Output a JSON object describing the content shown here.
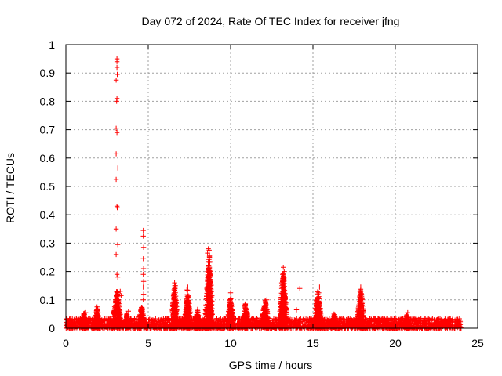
{
  "chart_data": {
    "type": "scatter",
    "title": "Day 072 of 2024, Rate Of TEC Index for receiver jfng",
    "xlabel": "GPS time / hours",
    "ylabel": "ROTI / TECUs",
    "xlim": [
      0,
      25
    ],
    "ylim": [
      0,
      1
    ],
    "x_ticks": [
      0,
      5,
      10,
      15,
      20,
      25
    ],
    "y_ticks": [
      0,
      0.1,
      0.2,
      0.3,
      0.4,
      0.5,
      0.6,
      0.7,
      0.8,
      0.9,
      1
    ],
    "x_tick_labels": [
      "0",
      "5",
      "10",
      "15",
      "20",
      "25"
    ],
    "y_tick_labels": [
      "0",
      "0.1",
      "0.2",
      "0.3",
      "0.4",
      "0.5",
      "0.6",
      "0.7",
      "0.8",
      "0.9",
      "1"
    ],
    "grid": true,
    "marker": "+",
    "color": "#ff0000",
    "baseline": {
      "x_start": 0,
      "x_end": 24,
      "y_min": 0.0,
      "y_max": 0.035
    },
    "clusters": [
      {
        "x_center": 1.1,
        "x_spread": 0.15,
        "peak": 0.06
      },
      {
        "x_center": 1.9,
        "x_spread": 0.2,
        "peak": 0.08
      },
      {
        "x_center": 3.1,
        "x_spread": 0.35,
        "peak": 0.14
      },
      {
        "x_center": 3.7,
        "x_spread": 0.1,
        "peak": 0.06
      },
      {
        "x_center": 4.6,
        "x_spread": 0.3,
        "peak": 0.08
      },
      {
        "x_center": 6.6,
        "x_spread": 0.25,
        "peak": 0.16
      },
      {
        "x_center": 7.4,
        "x_spread": 0.25,
        "peak": 0.14
      },
      {
        "x_center": 8.0,
        "x_spread": 0.2,
        "peak": 0.07
      },
      {
        "x_center": 8.7,
        "x_spread": 0.3,
        "peak": 0.27
      },
      {
        "x_center": 10.0,
        "x_spread": 0.25,
        "peak": 0.12
      },
      {
        "x_center": 10.9,
        "x_spread": 0.3,
        "peak": 0.09
      },
      {
        "x_center": 12.1,
        "x_spread": 0.35,
        "peak": 0.1
      },
      {
        "x_center": 13.2,
        "x_spread": 0.3,
        "peak": 0.21
      },
      {
        "x_center": 15.3,
        "x_spread": 0.3,
        "peak": 0.14
      },
      {
        "x_center": 16.3,
        "x_spread": 0.2,
        "peak": 0.06
      },
      {
        "x_center": 17.9,
        "x_spread": 0.35,
        "peak": 0.14
      },
      {
        "x_center": 20.7,
        "x_spread": 0.15,
        "peak": 0.05
      }
    ],
    "spike_points": [
      {
        "x": 3.1,
        "y": 0.95
      },
      {
        "x": 3.1,
        "y": 0.94
      },
      {
        "x": 3.1,
        "y": 0.92
      },
      {
        "x": 3.12,
        "y": 0.895
      },
      {
        "x": 3.05,
        "y": 0.875
      },
      {
        "x": 3.1,
        "y": 0.81
      },
      {
        "x": 3.08,
        "y": 0.8
      },
      {
        "x": 3.05,
        "y": 0.705
      },
      {
        "x": 3.1,
        "y": 0.69
      },
      {
        "x": 3.05,
        "y": 0.615
      },
      {
        "x": 3.15,
        "y": 0.565
      },
      {
        "x": 3.05,
        "y": 0.525
      },
      {
        "x": 3.1,
        "y": 0.43
      },
      {
        "x": 3.12,
        "y": 0.425
      },
      {
        "x": 3.05,
        "y": 0.35
      },
      {
        "x": 3.15,
        "y": 0.295
      },
      {
        "x": 3.05,
        "y": 0.26
      },
      {
        "x": 3.1,
        "y": 0.19
      },
      {
        "x": 3.15,
        "y": 0.18
      },
      {
        "x": 3.3,
        "y": 0.13
      },
      {
        "x": 3.35,
        "y": 0.115
      },
      {
        "x": 4.7,
        "y": 0.345
      },
      {
        "x": 4.7,
        "y": 0.325
      },
      {
        "x": 4.72,
        "y": 0.285
      },
      {
        "x": 4.7,
        "y": 0.245
      },
      {
        "x": 4.72,
        "y": 0.21
      },
      {
        "x": 4.7,
        "y": 0.19
      },
      {
        "x": 4.72,
        "y": 0.165
      },
      {
        "x": 4.7,
        "y": 0.145
      },
      {
        "x": 4.72,
        "y": 0.12
      },
      {
        "x": 4.7,
        "y": 0.1
      },
      {
        "x": 3.8,
        "y": 0.06
      },
      {
        "x": 8.65,
        "y": 0.28
      },
      {
        "x": 8.7,
        "y": 0.275
      },
      {
        "x": 8.6,
        "y": 0.265
      },
      {
        "x": 8.72,
        "y": 0.255
      },
      {
        "x": 8.65,
        "y": 0.235
      },
      {
        "x": 8.7,
        "y": 0.22
      },
      {
        "x": 8.6,
        "y": 0.2
      },
      {
        "x": 8.75,
        "y": 0.18
      },
      {
        "x": 8.65,
        "y": 0.16
      },
      {
        "x": 8.7,
        "y": 0.14
      },
      {
        "x": 13.2,
        "y": 0.215
      },
      {
        "x": 13.25,
        "y": 0.2
      },
      {
        "x": 13.15,
        "y": 0.19
      },
      {
        "x": 13.2,
        "y": 0.175
      },
      {
        "x": 13.1,
        "y": 0.16
      },
      {
        "x": 13.25,
        "y": 0.145
      },
      {
        "x": 14.2,
        "y": 0.14
      },
      {
        "x": 14.0,
        "y": 0.065
      },
      {
        "x": 15.4,
        "y": 0.145
      },
      {
        "x": 15.35,
        "y": 0.125
      },
      {
        "x": 17.9,
        "y": 0.145
      },
      {
        "x": 17.85,
        "y": 0.13
      },
      {
        "x": 6.6,
        "y": 0.16
      },
      {
        "x": 6.65,
        "y": 0.15
      },
      {
        "x": 7.4,
        "y": 0.145
      },
      {
        "x": 7.35,
        "y": 0.135
      },
      {
        "x": 10.0,
        "y": 0.125
      },
      {
        "x": 12.2,
        "y": 0.1
      },
      {
        "x": 20.75,
        "y": 0.055
      },
      {
        "x": 1.2,
        "y": 0.055
      }
    ]
  }
}
